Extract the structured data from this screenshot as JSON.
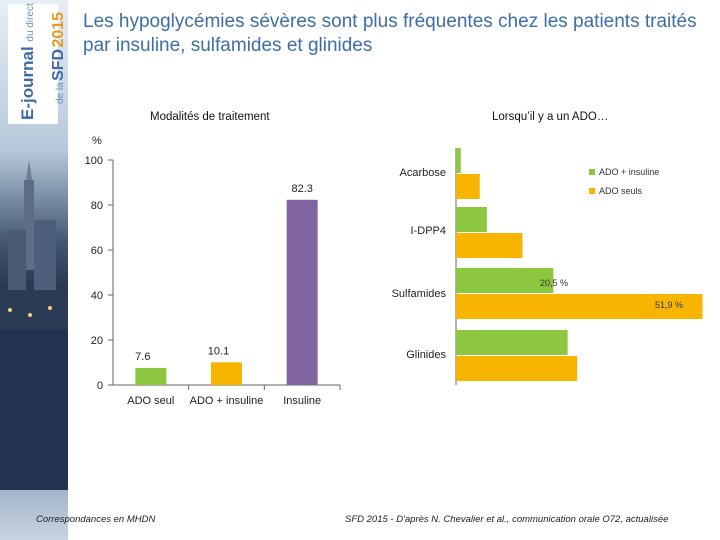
{
  "title": "Les hypoglycémies sévères sont plus fréquentes chez les patients traités par insuline, sulfamides et glinides",
  "branding": {
    "ejournal": "E-journal",
    "du_direct": "du direct",
    "de_la": "de la",
    "sfd": "SFD",
    "year": "2015"
  },
  "colors": {
    "title": "#3d6ea8",
    "green": "#8dc63f",
    "orange": "#f7b500",
    "purple": "#8064a2"
  },
  "chart_data": [
    {
      "type": "bar",
      "title": "Modalités de traitement",
      "ylabel": "%",
      "ylim": [
        0,
        100
      ],
      "yticks": [
        0,
        20,
        40,
        60,
        80,
        100
      ],
      "categories": [
        "ADO seul",
        "ADO + insuline",
        "Insuline"
      ],
      "values": [
        7.6,
        10.1,
        82.3
      ],
      "value_labels": [
        "7.6",
        "10.1",
        "82.3"
      ],
      "bar_colors": [
        "#8dc63f",
        "#f7b500",
        "#8064a2"
      ]
    },
    {
      "type": "bar",
      "orientation": "horizontal",
      "title": "Lorsqu’il y a un ADO…",
      "categories": [
        "Acarbose",
        "I-DPP4",
        "Sulfamides",
        "Glinides"
      ],
      "xlim": [
        0,
        60
      ],
      "series": [
        {
          "name": "ADO + insuline",
          "color": "#8dc63f",
          "values": [
            1.0,
            6.5,
            20.5,
            23.5
          ]
        },
        {
          "name": "ADO seuls",
          "color": "#f7b500",
          "values": [
            5.0,
            14.0,
            51.9,
            25.5
          ]
        }
      ],
      "annotations": [
        "20,5 %",
        "51,9 %"
      ],
      "legend_position": "top-right"
    }
  ],
  "footer": {
    "left": "Correspondances en MHDN",
    "right": "SFD 2015 - D'après N. Chevalier et al., communication orale O72, actualisée"
  }
}
